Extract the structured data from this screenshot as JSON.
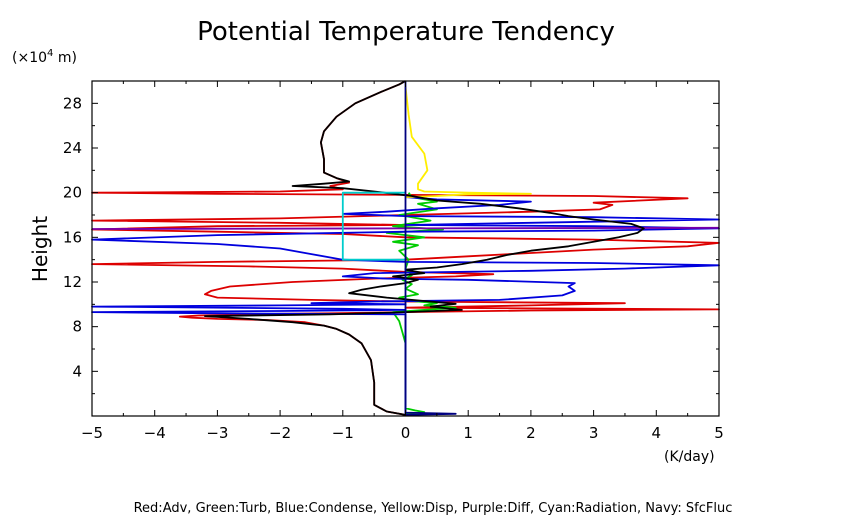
{
  "chart_data": {
    "type": "line",
    "title": "Potential Temperature Tendency",
    "ylabel": "Height",
    "yunit_prefix": "(×10",
    "yunit_exp": "4",
    "yunit_suffix": " m)",
    "xunit": "(K/day)",
    "caption": "Red:Adv, Green:Turb, Blue:Condense, Yellow:Disp, Purple:Diff, Cyan:Radiation, Navy: SfcFluc",
    "xlim": [
      -5,
      5
    ],
    "ylim": [
      0,
      30
    ],
    "xticks": [
      -5,
      -4,
      -3,
      -2,
      -1,
      0,
      1,
      2,
      3,
      4,
      5
    ],
    "yticks": [
      4,
      8,
      12,
      16,
      20,
      24,
      28
    ],
    "series": [
      {
        "key": "adv",
        "color": "#dd0000",
        "points": [
          [
            0,
            0.1
          ],
          [
            -0.3,
            0.4
          ],
          [
            -0.5,
            1
          ],
          [
            -0.5,
            3
          ],
          [
            -0.55,
            5
          ],
          [
            -0.7,
            6.5
          ],
          [
            -0.9,
            7.3
          ],
          [
            -1.1,
            7.8
          ],
          [
            -1.3,
            8.1
          ],
          [
            -1.6,
            8.4
          ],
          [
            -2.2,
            8.6
          ],
          [
            -3,
            8.7
          ],
          [
            -3.4,
            8.8
          ],
          [
            -3.6,
            8.9
          ],
          [
            -3.3,
            9
          ],
          [
            -2,
            9.15
          ],
          [
            -1.2,
            9.2
          ],
          [
            0,
            9.3
          ],
          [
            2,
            9.45
          ],
          [
            5,
            9.55
          ],
          [
            0,
            9.7
          ],
          [
            2,
            9.9
          ],
          [
            3.5,
            10.1
          ],
          [
            0,
            10.25
          ],
          [
            -1.5,
            10.4
          ],
          [
            -3,
            10.6
          ],
          [
            -3.2,
            10.9
          ],
          [
            -3.1,
            11.2
          ],
          [
            -2.8,
            11.6
          ],
          [
            -1.8,
            12
          ],
          [
            -0.5,
            12.3
          ],
          [
            0.8,
            12.5
          ],
          [
            1.4,
            12.7
          ],
          [
            0,
            12.9
          ],
          [
            -1,
            13.2
          ],
          [
            -2.5,
            13.4
          ],
          [
            -5,
            13.6
          ],
          [
            -3,
            13.8
          ],
          [
            0,
            14
          ],
          [
            1,
            14.3
          ],
          [
            2,
            14.6
          ],
          [
            3,
            14.9
          ],
          [
            4.5,
            15.2
          ],
          [
            5,
            15.5
          ],
          [
            3,
            15.8
          ],
          [
            0,
            16
          ],
          [
            -1,
            16.3
          ],
          [
            -3,
            16.5
          ],
          [
            -5,
            16.7
          ],
          [
            -3,
            17
          ],
          [
            0,
            17.1
          ],
          [
            -2,
            17.3
          ],
          [
            -5,
            17.5
          ],
          [
            -2,
            17.7
          ],
          [
            0,
            18
          ],
          [
            2,
            18.3
          ],
          [
            3.1,
            18.5
          ],
          [
            3.3,
            18.9
          ],
          [
            3,
            19.1
          ],
          [
            4.5,
            19.5
          ],
          [
            3,
            19.7
          ],
          [
            0,
            19.8
          ],
          [
            -3,
            19.9
          ],
          [
            -5,
            20
          ],
          [
            -2,
            20.1
          ],
          [
            -1,
            20.3
          ],
          [
            -1.2,
            20.6
          ],
          [
            -0.9,
            20.9
          ],
          [
            -1.1,
            21.3
          ],
          [
            -1.3,
            21.8
          ],
          [
            -1.3,
            23
          ],
          [
            -1.35,
            24.5
          ],
          [
            -1.3,
            25.5
          ],
          [
            -1.1,
            26.8
          ],
          [
            -0.8,
            28
          ],
          [
            -0.4,
            29
          ],
          [
            -0.1,
            29.7
          ],
          [
            0,
            30
          ]
        ]
      },
      {
        "key": "turb",
        "color": "#00cc00",
        "points": [
          [
            0,
            0.2
          ],
          [
            0.3,
            0.35
          ],
          [
            0.15,
            0.5
          ],
          [
            0,
            0.7
          ],
          [
            0,
            6.5
          ],
          [
            -0.05,
            7.5
          ],
          [
            -0.1,
            8.5
          ],
          [
            -0.2,
            9.3
          ],
          [
            0.3,
            9.5
          ],
          [
            0.8,
            9.7
          ],
          [
            0.3,
            9.9
          ],
          [
            0.5,
            10.1
          ],
          [
            0.1,
            10.3
          ],
          [
            -0.1,
            10.6
          ],
          [
            0.2,
            10.9
          ],
          [
            0,
            11.4
          ],
          [
            0.1,
            11.8
          ],
          [
            -0.05,
            12.2
          ],
          [
            0.1,
            12.6
          ],
          [
            0,
            13.2
          ],
          [
            0.05,
            14
          ],
          [
            -0.1,
            14.8
          ],
          [
            0.2,
            15.3
          ],
          [
            -0.2,
            15.6
          ],
          [
            0.3,
            16
          ],
          [
            -0.3,
            16.4
          ],
          [
            0.6,
            16.7
          ],
          [
            -0.2,
            17
          ],
          [
            0.4,
            17.5
          ],
          [
            -0.1,
            18
          ],
          [
            0.5,
            18.5
          ],
          [
            0.2,
            19
          ],
          [
            0.5,
            19.2
          ],
          [
            0.1,
            19.6
          ],
          [
            0.05,
            20
          ]
        ]
      },
      {
        "key": "condense",
        "color": "#0000dd",
        "points": [
          [
            0,
            0
          ],
          [
            0,
            9.1
          ],
          [
            -3,
            9.2
          ],
          [
            -5,
            9.3
          ],
          [
            -2,
            9.4
          ],
          [
            0,
            9.5
          ],
          [
            -1,
            9.6
          ],
          [
            -5,
            9.8
          ],
          [
            -2,
            9.9
          ],
          [
            0,
            10
          ],
          [
            -1.5,
            10.1
          ],
          [
            -0.5,
            10.25
          ],
          [
            1.5,
            10.4
          ],
          [
            2.5,
            10.8
          ],
          [
            2.7,
            11.2
          ],
          [
            2.6,
            11.6
          ],
          [
            2.7,
            11.9
          ],
          [
            1,
            12.2
          ],
          [
            -0.3,
            12.3
          ],
          [
            -1,
            12.5
          ],
          [
            -0.5,
            12.8
          ],
          [
            2,
            13
          ],
          [
            3.5,
            13.2
          ],
          [
            5,
            13.5
          ],
          [
            3,
            13.7
          ],
          [
            0,
            13.8
          ],
          [
            -1,
            14
          ],
          [
            -1.5,
            14.5
          ],
          [
            -2,
            15
          ],
          [
            -3,
            15.4
          ],
          [
            -5,
            15.8
          ],
          [
            -3,
            16.2
          ],
          [
            0,
            16.5
          ],
          [
            3,
            16.6
          ],
          [
            5,
            16.8
          ],
          [
            3,
            17
          ],
          [
            0,
            17.1
          ],
          [
            2,
            17.3
          ],
          [
            5,
            17.6
          ],
          [
            3,
            17.8
          ],
          [
            0,
            17.9
          ],
          [
            -1,
            18.1
          ],
          [
            -0.3,
            18.3
          ],
          [
            0.5,
            18.6
          ],
          [
            1.5,
            18.9
          ],
          [
            2,
            19.2
          ],
          [
            0.5,
            19.4
          ],
          [
            0,
            19.6
          ]
        ]
      },
      {
        "key": "disp",
        "color": "#ffee00",
        "points": [
          [
            0,
            19.6
          ],
          [
            0.5,
            19.7
          ],
          [
            1,
            19.85
          ],
          [
            2,
            19.9
          ],
          [
            1,
            20
          ],
          [
            0.3,
            20.1
          ],
          [
            0.2,
            20.3
          ],
          [
            0.2,
            20.8
          ],
          [
            0.35,
            22
          ],
          [
            0.3,
            23.5
          ],
          [
            0.1,
            25
          ],
          [
            0.05,
            27
          ],
          [
            0,
            29.5
          ]
        ]
      },
      {
        "key": "diff",
        "color": "#7700aa",
        "points": [
          [
            -5,
            16.75
          ],
          [
            0,
            16.8
          ],
          [
            5,
            16.85
          ]
        ]
      },
      {
        "key": "total",
        "color": "#000000",
        "points": [
          [
            0,
            0.1
          ],
          [
            -0.3,
            0.4
          ],
          [
            -0.5,
            1
          ],
          [
            -0.5,
            3
          ],
          [
            -0.55,
            5
          ],
          [
            -0.7,
            6.5
          ],
          [
            -0.9,
            7.3
          ],
          [
            -1.1,
            7.8
          ],
          [
            -1.3,
            8.1
          ],
          [
            -1.8,
            8.4
          ],
          [
            -2.5,
            8.7
          ],
          [
            -3.2,
            8.95
          ],
          [
            -1.2,
            9.1
          ],
          [
            0,
            9.3
          ],
          [
            0.9,
            9.5
          ],
          [
            0.4,
            9.8
          ],
          [
            0.8,
            10.05
          ],
          [
            0.3,
            10.3
          ],
          [
            -0.3,
            10.6
          ],
          [
            -0.9,
            11
          ],
          [
            -0.7,
            11.3
          ],
          [
            -0.4,
            11.6
          ],
          [
            0,
            11.9
          ],
          [
            0.2,
            12.2
          ],
          [
            -0.2,
            12.5
          ],
          [
            0.3,
            12.8
          ],
          [
            0,
            13.1
          ],
          [
            0.5,
            13.3
          ],
          [
            0.9,
            13.6
          ],
          [
            1.3,
            14
          ],
          [
            1.6,
            14.4
          ],
          [
            2,
            14.8
          ],
          [
            2.6,
            15.2
          ],
          [
            3,
            15.6
          ],
          [
            3.4,
            16
          ],
          [
            3.7,
            16.4
          ],
          [
            3.8,
            16.8
          ],
          [
            3.6,
            17.2
          ],
          [
            3,
            17.6
          ],
          [
            2.6,
            17.9
          ],
          [
            2.3,
            18.2
          ],
          [
            1.8,
            18.6
          ],
          [
            1.2,
            19
          ],
          [
            0.5,
            19.3
          ],
          [
            0.1,
            19.7
          ],
          [
            -0.2,
            19.9
          ],
          [
            -0.5,
            20.1
          ],
          [
            -1,
            20.4
          ],
          [
            -1.8,
            20.6
          ],
          [
            -1.3,
            20.8
          ],
          [
            -0.9,
            21
          ],
          [
            -1.1,
            21.3
          ],
          [
            -1.3,
            21.8
          ],
          [
            -1.3,
            23
          ],
          [
            -1.35,
            24.5
          ],
          [
            -1.3,
            25.5
          ],
          [
            -1.1,
            26.8
          ],
          [
            -0.8,
            28
          ],
          [
            -0.4,
            29
          ],
          [
            -0.1,
            29.7
          ],
          [
            0,
            30
          ]
        ]
      },
      {
        "key": "radiation",
        "color": "#00cccc",
        "points": [
          [
            0,
            14
          ],
          [
            -1,
            14
          ],
          [
            -1,
            20
          ],
          [
            0,
            20
          ]
        ]
      },
      {
        "key": "sfcfluc",
        "color": "#000080",
        "points": [
          [
            0,
            0.1
          ],
          [
            0.8,
            0.2
          ],
          [
            0,
            0.3
          ],
          [
            0,
            30
          ]
        ]
      }
    ]
  }
}
